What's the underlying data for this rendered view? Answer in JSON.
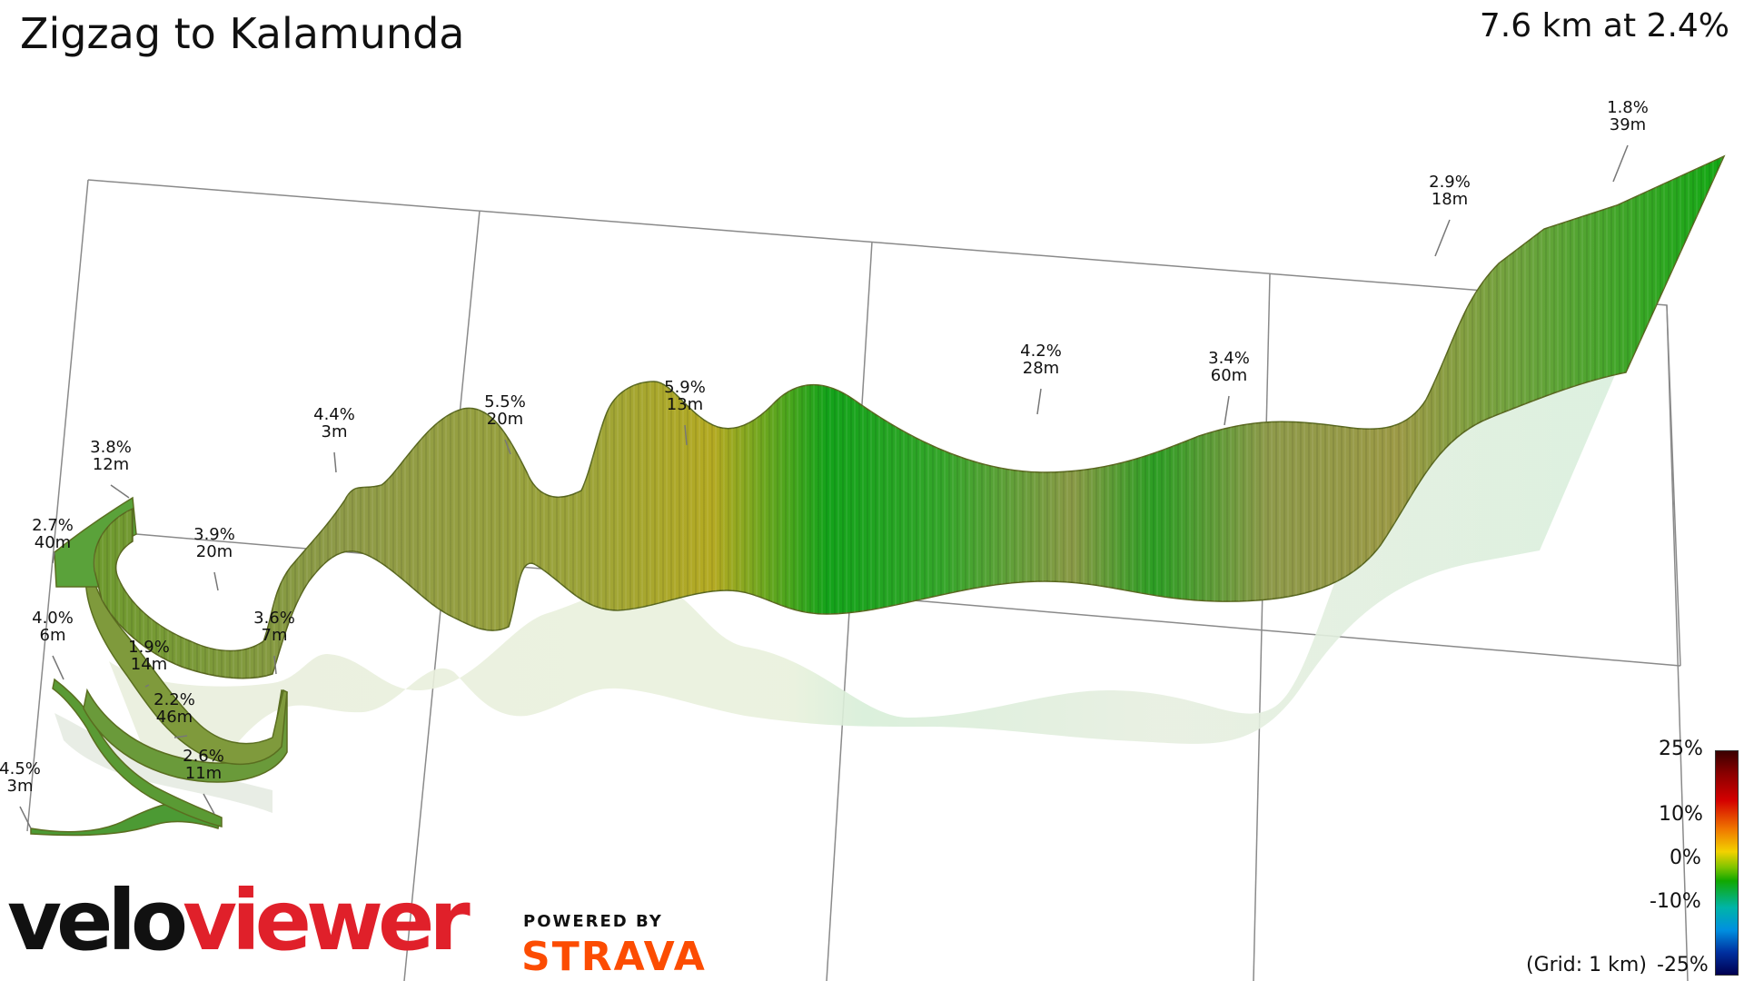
{
  "title": "Zigzag to Kalamunda",
  "summary": "7.6 km at 2.4%",
  "grid_note": "(Grid: 1 km)",
  "legend": {
    "labels": [
      "25%",
      "10%",
      "0%",
      "-10%",
      "-25%"
    ]
  },
  "branding": {
    "velo": "velo",
    "viewer": "viewer",
    "powered_by": "POWERED BY",
    "strava": "STRAVA"
  },
  "colors": {
    "ribbon_green": "#2ea81f",
    "ribbon_olive": "#8a9a3a",
    "ribbon_yellow": "#b0a826",
    "shadow": "#e4efe0",
    "brand_red": "#e0202a",
    "strava_orange": "#fc4c02"
  },
  "chart_data": {
    "type": "3d-elevation-profile",
    "annotations": [
      {
        "grade": "4.5%",
        "length": "3m"
      },
      {
        "grade": "2.6%",
        "length": "11m"
      },
      {
        "grade": "2.2%",
        "length": "46m"
      },
      {
        "grade": "1.9%",
        "length": "14m"
      },
      {
        "grade": "4.0%",
        "length": "6m"
      },
      {
        "grade": "2.7%",
        "length": "40m"
      },
      {
        "grade": "3.8%",
        "length": "12m"
      },
      {
        "grade": "3.9%",
        "length": "20m"
      },
      {
        "grade": "3.6%",
        "length": "7m"
      },
      {
        "grade": "4.4%",
        "length": "3m"
      },
      {
        "grade": "5.5%",
        "length": "20m"
      },
      {
        "grade": "5.9%",
        "length": "13m"
      },
      {
        "grade": "4.2%",
        "length": "28m"
      },
      {
        "grade": "3.4%",
        "length": "60m"
      },
      {
        "grade": "2.9%",
        "length": "18m"
      },
      {
        "grade": "1.8%",
        "length": "39m"
      }
    ]
  }
}
